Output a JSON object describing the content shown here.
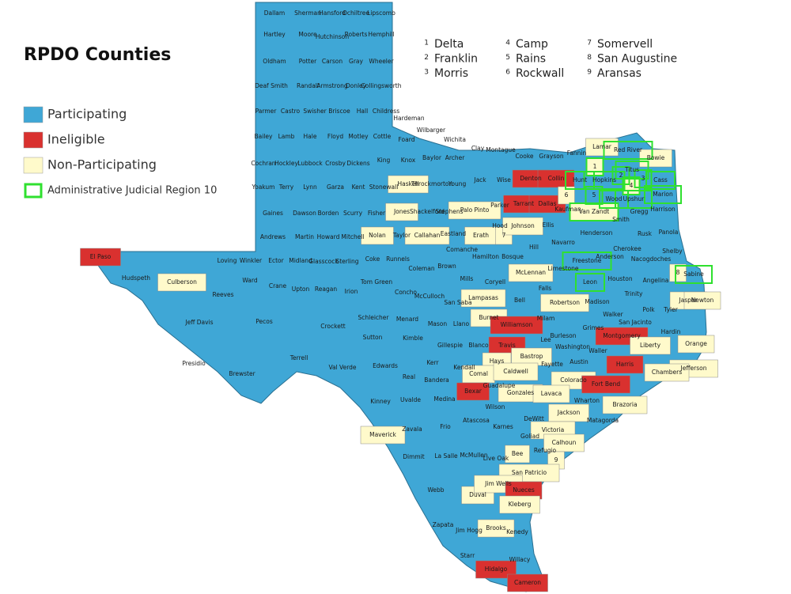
{
  "title": "RPDO Counties",
  "legend": [
    {
      "name": "Participating",
      "color": "#3fa7d6",
      "style": "fill"
    },
    {
      "name": "Ineligible",
      "color": "#d9312f",
      "style": "fill"
    },
    {
      "name": "Non-Participating",
      "color": "#fffacb",
      "style": "fill"
    },
    {
      "name": "Administrative Judicial Region 10",
      "color": "#2fe02f",
      "style": "outline"
    }
  ],
  "key": [
    {
      "number": "1",
      "name": "Delta"
    },
    {
      "number": "2",
      "name": "Franklin"
    },
    {
      "number": "3",
      "name": "Morris"
    },
    {
      "number": "4",
      "name": "Camp"
    },
    {
      "number": "5",
      "name": "Rains"
    },
    {
      "number": "6",
      "name": "Rockwall"
    },
    {
      "number": "7",
      "name": "Somervell"
    },
    {
      "number": "8",
      "name": "San Augustine"
    },
    {
      "number": "9",
      "name": "Aransas"
    }
  ],
  "counties": [
    {
      "name": "Dallam",
      "legend": [
        0
      ]
    },
    {
      "name": "Sherman",
      "legend": [
        0
      ]
    },
    {
      "name": "Hansford",
      "legend": [
        0
      ]
    },
    {
      "name": "Ochiltree",
      "legend": [
        0
      ]
    },
    {
      "name": "Lipscomb",
      "legend": [
        0
      ]
    },
    {
      "name": "Hartley",
      "legend": [
        0
      ]
    },
    {
      "name": "Moore",
      "legend": [
        0
      ]
    },
    {
      "name": "Hutchinson",
      "legend": [
        0
      ]
    },
    {
      "name": "Roberts",
      "legend": [
        0
      ]
    },
    {
      "name": "Hemphill",
      "legend": [
        0
      ]
    },
    {
      "name": "Oldham",
      "legend": [
        0
      ]
    },
    {
      "name": "Potter",
      "legend": [
        0
      ]
    },
    {
      "name": "Carson",
      "legend": [
        0
      ]
    },
    {
      "name": "Gray",
      "legend": [
        0
      ]
    },
    {
      "name": "Wheeler",
      "legend": [
        0
      ]
    },
    {
      "name": "Deaf Smith",
      "legend": [
        0
      ]
    },
    {
      "name": "Randall",
      "legend": [
        0
      ]
    },
    {
      "name": "Armstrong",
      "legend": [
        0
      ]
    },
    {
      "name": "Donley",
      "legend": [
        0
      ]
    },
    {
      "name": "Collingsworth",
      "legend": [
        0
      ]
    },
    {
      "name": "Parmer",
      "legend": [
        0
      ]
    },
    {
      "name": "Castro",
      "legend": [
        0
      ]
    },
    {
      "name": "Swisher",
      "legend": [
        0
      ]
    },
    {
      "name": "Briscoe",
      "legend": [
        0
      ]
    },
    {
      "name": "Hall",
      "legend": [
        0
      ]
    },
    {
      "name": "Childress",
      "legend": [
        0
      ]
    },
    {
      "name": "Bailey",
      "legend": [
        0
      ]
    },
    {
      "name": "Lamb",
      "legend": [
        0
      ]
    },
    {
      "name": "Hale",
      "legend": [
        0
      ]
    },
    {
      "name": "Floyd",
      "legend": [
        0
      ]
    },
    {
      "name": "Motley",
      "legend": [
        0
      ]
    },
    {
      "name": "Cottle",
      "legend": [
        0
      ]
    },
    {
      "name": "Hardeman",
      "legend": [
        0
      ]
    },
    {
      "name": "Foard",
      "legend": [
        0
      ]
    },
    {
      "name": "Wilbarger",
      "legend": [
        0
      ]
    },
    {
      "name": "Wichita",
      "legend": [
        0
      ]
    },
    {
      "name": "Cochran",
      "legend": [
        0
      ]
    },
    {
      "name": "Hockley",
      "legend": [
        0
      ]
    },
    {
      "name": "Lubbock",
      "legend": [
        0
      ]
    },
    {
      "name": "Crosby",
      "legend": [
        0
      ]
    },
    {
      "name": "Dickens",
      "legend": [
        0
      ]
    },
    {
      "name": "King",
      "legend": [
        0
      ]
    },
    {
      "name": "Knox",
      "legend": [
        0
      ]
    },
    {
      "name": "Baylor",
      "legend": [
        0
      ]
    },
    {
      "name": "Archer",
      "legend": [
        0
      ]
    },
    {
      "name": "Clay",
      "legend": [
        0
      ]
    },
    {
      "name": "Montague",
      "legend": [
        0
      ]
    },
    {
      "name": "Cooke",
      "legend": [
        0
      ]
    },
    {
      "name": "Grayson",
      "legend": [
        0
      ]
    },
    {
      "name": "Fannin",
      "legend": [
        0
      ]
    },
    {
      "name": "Lamar",
      "legend": [
        2
      ]
    },
    {
      "name": "Red River",
      "legend": [
        0,
        3
      ]
    },
    {
      "name": "Bowie",
      "legend": [
        2
      ]
    },
    {
      "name": "Yoakum",
      "legend": [
        0
      ]
    },
    {
      "name": "Terry",
      "legend": [
        0
      ]
    },
    {
      "name": "Lynn",
      "legend": [
        0
      ]
    },
    {
      "name": "Garza",
      "legend": [
        0
      ]
    },
    {
      "name": "Kent",
      "legend": [
        0
      ]
    },
    {
      "name": "Stonewall",
      "legend": [
        0
      ]
    },
    {
      "name": "Haskell",
      "legend": [
        2
      ]
    },
    {
      "name": "Throckmorton",
      "legend": [
        0
      ]
    },
    {
      "name": "Young",
      "legend": [
        0
      ]
    },
    {
      "name": "Jack",
      "legend": [
        0
      ]
    },
    {
      "name": "Wise",
      "legend": [
        0
      ]
    },
    {
      "name": "Denton",
      "legend": [
        1
      ]
    },
    {
      "name": "Collin",
      "legend": [
        1
      ]
    },
    {
      "name": "Hunt",
      "legend": [
        0,
        3
      ]
    },
    {
      "name": "Hopkins",
      "legend": [
        0,
        3
      ]
    },
    {
      "name": "1",
      "legend": [
        2,
        3
      ]
    },
    {
      "name": "2",
      "legend": [
        0,
        3
      ]
    },
    {
      "name": "3",
      "legend": [
        0,
        3
      ]
    },
    {
      "name": "Titus",
      "legend": [
        0,
        3
      ]
    },
    {
      "name": "4",
      "legend": [
        2,
        3
      ]
    },
    {
      "name": "Cass",
      "legend": [
        0,
        3
      ]
    },
    {
      "name": "Marion",
      "legend": [
        0,
        3
      ]
    },
    {
      "name": "Gaines",
      "legend": [
        0
      ]
    },
    {
      "name": "Dawson",
      "legend": [
        0
      ]
    },
    {
      "name": "Borden",
      "legend": [
        0
      ]
    },
    {
      "name": "Scurry",
      "legend": [
        0
      ]
    },
    {
      "name": "Fisher",
      "legend": [
        0
      ]
    },
    {
      "name": "Jones",
      "legend": [
        2
      ]
    },
    {
      "name": "Shackelford",
      "legend": [
        0
      ]
    },
    {
      "name": "Stephens",
      "legend": [
        0
      ]
    },
    {
      "name": "Palo Pinto",
      "legend": [
        2
      ]
    },
    {
      "name": "Parker",
      "legend": [
        0
      ]
    },
    {
      "name": "Tarrant",
      "legend": [
        1
      ]
    },
    {
      "name": "Dallas",
      "legend": [
        1
      ]
    },
    {
      "name": "6",
      "legend": [
        2
      ]
    },
    {
      "name": "Kaufman",
      "legend": [
        0
      ]
    },
    {
      "name": "5",
      "legend": [
        0,
        3
      ]
    },
    {
      "name": "Van Zandt",
      "legend": [
        2,
        3
      ]
    },
    {
      "name": "Wood",
      "legend": [
        0,
        3
      ]
    },
    {
      "name": "Upshur",
      "legend": [
        0,
        3
      ]
    },
    {
      "name": "Smith",
      "legend": [
        0
      ]
    },
    {
      "name": "Gregg",
      "legend": [
        0
      ]
    },
    {
      "name": "Harrison",
      "legend": [
        0
      ]
    },
    {
      "name": "Rusk",
      "legend": [
        0
      ]
    },
    {
      "name": "Panola",
      "legend": [
        0
      ]
    },
    {
      "name": "Andrews",
      "legend": [
        0
      ]
    },
    {
      "name": "Martin",
      "legend": [
        0
      ]
    },
    {
      "name": "Howard",
      "legend": [
        0
      ]
    },
    {
      "name": "Mitchell",
      "legend": [
        0
      ]
    },
    {
      "name": "Nolan",
      "legend": [
        2
      ]
    },
    {
      "name": "Taylor",
      "legend": [
        0
      ]
    },
    {
      "name": "Callahan",
      "legend": [
        2
      ]
    },
    {
      "name": "Eastland",
      "legend": [
        0
      ]
    },
    {
      "name": "Erath",
      "legend": [
        2
      ]
    },
    {
      "name": "Hood",
      "legend": [
        0
      ]
    },
    {
      "name": "7",
      "legend": [
        2
      ]
    },
    {
      "name": "Johnson",
      "legend": [
        2
      ]
    },
    {
      "name": "Ellis",
      "legend": [
        0
      ]
    },
    {
      "name": "Henderson",
      "legend": [
        0
      ]
    },
    {
      "name": "Navarro",
      "legend": [
        0
      ]
    },
    {
      "name": "Cherokee",
      "legend": [
        0
      ]
    },
    {
      "name": "Nacogdoches",
      "legend": [
        0
      ]
    },
    {
      "name": "Shelby",
      "legend": [
        0
      ]
    },
    {
      "name": "Anderson",
      "legend": [
        0
      ]
    },
    {
      "name": "El Paso",
      "legend": [
        1
      ]
    },
    {
      "name": "Hudspeth",
      "legend": [
        0
      ]
    },
    {
      "name": "Culberson",
      "legend": [
        2
      ]
    },
    {
      "name": "Loving",
      "legend": [
        0
      ]
    },
    {
      "name": "Winkler",
      "legend": [
        0
      ]
    },
    {
      "name": "Ector",
      "legend": [
        0
      ]
    },
    {
      "name": "Midland",
      "legend": [
        0
      ]
    },
    {
      "name": "Glasscock",
      "legend": [
        0
      ]
    },
    {
      "name": "Sterling",
      "legend": [
        0
      ]
    },
    {
      "name": "Coke",
      "legend": [
        0
      ]
    },
    {
      "name": "Runnels",
      "legend": [
        0
      ]
    },
    {
      "name": "Coleman",
      "legend": [
        0
      ]
    },
    {
      "name": "Brown",
      "legend": [
        0
      ]
    },
    {
      "name": "Comanche",
      "legend": [
        0
      ]
    },
    {
      "name": "Hamilton",
      "legend": [
        0
      ]
    },
    {
      "name": "Bosque",
      "legend": [
        0
      ]
    },
    {
      "name": "Hill",
      "legend": [
        0
      ]
    },
    {
      "name": "Freestone",
      "legend": [
        0,
        3
      ]
    },
    {
      "name": "Limestone",
      "legend": [
        0
      ]
    },
    {
      "name": "Sabine",
      "legend": [
        0,
        3
      ]
    },
    {
      "name": "8",
      "legend": [
        2
      ]
    },
    {
      "name": "Ward",
      "legend": [
        0
      ]
    },
    {
      "name": "Crane",
      "legend": [
        0
      ]
    },
    {
      "name": "Upton",
      "legend": [
        0
      ]
    },
    {
      "name": "Reagan",
      "legend": [
        0
      ]
    },
    {
      "name": "Irion",
      "legend": [
        0
      ]
    },
    {
      "name": "Tom Green",
      "legend": [
        0
      ]
    },
    {
      "name": "Concho",
      "legend": [
        0
      ]
    },
    {
      "name": "McCulloch",
      "legend": [
        0
      ]
    },
    {
      "name": "Mills",
      "legend": [
        0
      ]
    },
    {
      "name": "McLennan",
      "legend": [
        2
      ]
    },
    {
      "name": "Coryell",
      "legend": [
        0
      ]
    },
    {
      "name": "Falls",
      "legend": [
        0
      ]
    },
    {
      "name": "Leon",
      "legend": [
        0,
        3
      ]
    },
    {
      "name": "Houston",
      "legend": [
        0
      ]
    },
    {
      "name": "Angelina",
      "legend": [
        0
      ]
    },
    {
      "name": "Trinity",
      "legend": [
        0
      ]
    },
    {
      "name": "Polk",
      "legend": [
        0
      ]
    },
    {
      "name": "Tyler",
      "legend": [
        0
      ]
    },
    {
      "name": "Jasper",
      "legend": [
        2
      ]
    },
    {
      "name": "Newton",
      "legend": [
        2
      ]
    },
    {
      "name": "Reeves",
      "legend": [
        0
      ]
    },
    {
      "name": "Pecos",
      "legend": [
        0
      ]
    },
    {
      "name": "Crockett",
      "legend": [
        0
      ]
    },
    {
      "name": "Schleicher",
      "legend": [
        0
      ]
    },
    {
      "name": "Menard",
      "legend": [
        0
      ]
    },
    {
      "name": "Mason",
      "legend": [
        0
      ]
    },
    {
      "name": "Llano",
      "legend": [
        0
      ]
    },
    {
      "name": "San Saba",
      "legend": [
        0
      ]
    },
    {
      "name": "Lampasas",
      "legend": [
        2
      ]
    },
    {
      "name": "Bell",
      "legend": [
        0
      ]
    },
    {
      "name": "Robertson",
      "legend": [
        2
      ]
    },
    {
      "name": "Madison",
      "legend": [
        0
      ]
    },
    {
      "name": "Walker",
      "legend": [
        0
      ]
    },
    {
      "name": "San Jacinto",
      "legend": [
        0
      ]
    },
    {
      "name": "Hardin",
      "legend": [
        0
      ]
    },
    {
      "name": "Milam",
      "legend": [
        0
      ]
    },
    {
      "name": "Burnet",
      "legend": [
        2
      ]
    },
    {
      "name": "Williamson",
      "legend": [
        1
      ]
    },
    {
      "name": "Burleson",
      "legend": [
        0
      ]
    },
    {
      "name": "Grimes",
      "legend": [
        0
      ]
    },
    {
      "name": "Montgomery",
      "legend": [
        1
      ]
    },
    {
      "name": "Liberty",
      "legend": [
        2
      ]
    },
    {
      "name": "Orange",
      "legend": [
        2
      ]
    },
    {
      "name": "Jefferson",
      "legend": [
        2
      ]
    },
    {
      "name": "Jeff Davis",
      "legend": [
        0
      ]
    },
    {
      "name": "Presidio",
      "legend": [
        0
      ]
    },
    {
      "name": "Brewster",
      "legend": [
        0
      ]
    },
    {
      "name": "Terrell",
      "legend": [
        0
      ]
    },
    {
      "name": "Val Verde",
      "legend": [
        0
      ]
    },
    {
      "name": "Sutton",
      "legend": [
        0
      ]
    },
    {
      "name": "Kimble",
      "legend": [
        0
      ]
    },
    {
      "name": "Gillespie",
      "legend": [
        0
      ]
    },
    {
      "name": "Blanco",
      "legend": [
        0
      ]
    },
    {
      "name": "Travis",
      "legend": [
        1
      ]
    },
    {
      "name": "Lee",
      "legend": [
        0
      ]
    },
    {
      "name": "Washington",
      "legend": [
        0
      ]
    },
    {
      "name": "Hays",
      "legend": [
        2
      ]
    },
    {
      "name": "Bastrop",
      "legend": [
        2
      ]
    },
    {
      "name": "Austin",
      "legend": [
        0
      ]
    },
    {
      "name": "Harris",
      "legend": [
        1
      ]
    },
    {
      "name": "Waller",
      "legend": [
        0
      ]
    },
    {
      "name": "Chambers",
      "legend": [
        2
      ]
    },
    {
      "name": "Edwards",
      "legend": [
        0
      ]
    },
    {
      "name": "Real",
      "legend": [
        0
      ]
    },
    {
      "name": "Kerr",
      "legend": [
        0
      ]
    },
    {
      "name": "Kendall",
      "legend": [
        0
      ]
    },
    {
      "name": "Comal",
      "legend": [
        2
      ]
    },
    {
      "name": "Caldwell",
      "legend": [
        2
      ]
    },
    {
      "name": "Fayette",
      "legend": [
        0
      ]
    },
    {
      "name": "Colorado",
      "legend": [
        2
      ]
    },
    {
      "name": "Fort Bend",
      "legend": [
        1
      ]
    },
    {
      "name": "Brazoria",
      "legend": [
        2
      ]
    },
    {
      "name": "Bandera",
      "legend": [
        0
      ]
    },
    {
      "name": "Guadalupe",
      "legend": [
        0
      ]
    },
    {
      "name": "Gonzales",
      "legend": [
        2
      ]
    },
    {
      "name": "Lavaca",
      "legend": [
        2
      ]
    },
    {
      "name": "Wharton",
      "legend": [
        0
      ]
    },
    {
      "name": "Bexar",
      "legend": [
        1
      ]
    },
    {
      "name": "Jackson",
      "legend": [
        2
      ]
    },
    {
      "name": "Matagorda",
      "legend": [
        0
      ]
    },
    {
      "name": "Kinney",
      "legend": [
        0
      ]
    },
    {
      "name": "Uvalde",
      "legend": [
        0
      ]
    },
    {
      "name": "Medina",
      "legend": [
        0
      ]
    },
    {
      "name": "Wilson",
      "legend": [
        0
      ]
    },
    {
      "name": "Karnes",
      "legend": [
        0
      ]
    },
    {
      "name": "DeWitt",
      "legend": [
        0
      ]
    },
    {
      "name": "Victoria",
      "legend": [
        2
      ]
    },
    {
      "name": "Calhoun",
      "legend": [
        2
      ]
    },
    {
      "name": "Goliad",
      "legend": [
        0
      ]
    },
    {
      "name": "Refugio",
      "legend": [
        0
      ]
    },
    {
      "name": "Maverick",
      "legend": [
        2
      ]
    },
    {
      "name": "Zavala",
      "legend": [
        0
      ]
    },
    {
      "name": "Frio",
      "legend": [
        0
      ]
    },
    {
      "name": "Atascosa",
      "legend": [
        0
      ]
    },
    {
      "name": "Bee",
      "legend": [
        2
      ]
    },
    {
      "name": "9",
      "legend": [
        2
      ]
    },
    {
      "name": "Dimmit",
      "legend": [
        0
      ]
    },
    {
      "name": "La Salle",
      "legend": [
        0
      ]
    },
    {
      "name": "McMullen",
      "legend": [
        0
      ]
    },
    {
      "name": "Live Oak",
      "legend": [
        0
      ]
    },
    {
      "name": "San Patricio",
      "legend": [
        2
      ]
    },
    {
      "name": "Webb",
      "legend": [
        0
      ]
    },
    {
      "name": "Duval",
      "legend": [
        2
      ]
    },
    {
      "name": "Jim Wells",
      "legend": [
        2
      ]
    },
    {
      "name": "Nueces",
      "legend": [
        1
      ]
    },
    {
      "name": "Kleberg",
      "legend": [
        2
      ]
    },
    {
      "name": "Zapata",
      "legend": [
        0
      ]
    },
    {
      "name": "Jim Hogg",
      "legend": [
        0
      ]
    },
    {
      "name": "Brooks",
      "legend": [
        2
      ]
    },
    {
      "name": "Kenedy",
      "legend": [
        0
      ]
    },
    {
      "name": "Starr",
      "legend": [
        0
      ]
    },
    {
      "name": "Hidalgo",
      "legend": [
        1
      ]
    },
    {
      "name": "Willacy",
      "legend": [
        0
      ]
    },
    {
      "name": "Cameron",
      "legend": [
        1
      ]
    }
  ]
}
